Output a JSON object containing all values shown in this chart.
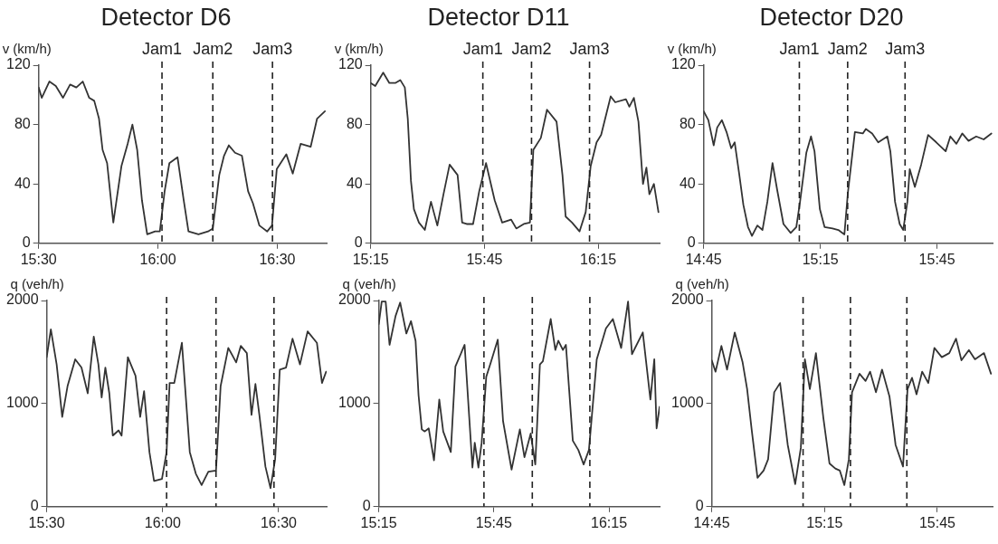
{
  "chart_data": [
    {
      "type": "line",
      "title": "Detector D6",
      "ylabel": "v (km/h)",
      "color": "#333333",
      "marker": "none",
      "line_style": "solid",
      "x": [
        15.5,
        15.513,
        15.545,
        15.572,
        15.602,
        15.632,
        15.658,
        15.685,
        15.712,
        15.733,
        15.753,
        15.768,
        15.787,
        15.813,
        15.847,
        15.873,
        15.893,
        15.913,
        15.933,
        15.955,
        15.988,
        16.008,
        16.028,
        16.048,
        16.082,
        16.108,
        16.128,
        16.17,
        16.21,
        16.23,
        16.257,
        16.277,
        16.297,
        16.323,
        16.352,
        16.378,
        16.398,
        16.425,
        16.458,
        16.478,
        16.498,
        16.538,
        16.565,
        16.598,
        16.64,
        16.667,
        16.7
      ],
      "values": [
        105,
        98,
        109,
        106,
        98,
        107,
        105,
        109,
        98,
        96,
        84,
        63,
        54,
        14,
        52,
        67,
        80,
        63,
        29,
        6,
        8,
        8,
        35,
        54,
        58,
        29,
        8,
        6,
        8,
        10,
        46,
        59,
        66,
        61,
        59,
        35,
        27,
        12,
        8,
        12,
        50,
        60,
        47,
        67,
        65,
        84,
        89
      ],
      "xlim": [
        15.5,
        16.707
      ],
      "xticks": [
        {
          "value": 15.5,
          "label": "15:30"
        },
        {
          "value": 16,
          "label": "16:00"
        },
        {
          "value": 16.5,
          "label": "16:30"
        }
      ],
      "ylim": [
        0,
        120
      ],
      "yticks": [
        0,
        40,
        80,
        120
      ],
      "ref_lines": [
        {
          "axis": "x",
          "value": 16.017,
          "label": "Jam1",
          "line_style": "dashed"
        },
        {
          "axis": "x",
          "value": 16.23,
          "label": "Jam2",
          "line_style": "dashed"
        },
        {
          "axis": "x",
          "value": 16.48,
          "label": "Jam3",
          "line_style": "dashed"
        }
      ]
    },
    {
      "type": "line",
      "title": "Detector D11",
      "ylabel": "v (km/h)",
      "color": "#333333",
      "marker": "none",
      "line_style": "solid",
      "x": [
        15.25,
        15.27,
        15.305,
        15.332,
        15.358,
        15.38,
        15.4,
        15.413,
        15.427,
        15.44,
        15.462,
        15.488,
        15.515,
        15.543,
        15.57,
        15.597,
        15.632,
        15.652,
        15.672,
        15.7,
        15.727,
        15.757,
        15.795,
        15.828,
        15.867,
        15.89,
        15.923,
        15.95,
        15.965,
        15.998,
        16.025,
        16.067,
        16.093,
        16.107,
        16.135,
        16.168,
        16.195,
        16.217,
        16.243,
        16.263,
        16.305,
        16.325,
        16.372,
        16.387,
        16.407,
        16.427,
        16.447,
        16.462,
        16.475,
        16.495,
        16.515
      ],
      "values": [
        108,
        106,
        115,
        108,
        108,
        110,
        105,
        84,
        42,
        23,
        14,
        9,
        28,
        12,
        33,
        53,
        46,
        14,
        13,
        13,
        35,
        54,
        29,
        14,
        16,
        10,
        13,
        14,
        63,
        71,
        90,
        82,
        46,
        18,
        14,
        8,
        21,
        52,
        68,
        73,
        99,
        95,
        97,
        92,
        98,
        82,
        40,
        51,
        33,
        40,
        21
      ],
      "xlim": [
        15.25,
        16.52
      ],
      "xticks": [
        {
          "value": 15.25,
          "label": "15:15"
        },
        {
          "value": 15.75,
          "label": "15:45"
        },
        {
          "value": 16.25,
          "label": "16:15"
        }
      ],
      "ylim": [
        0,
        120
      ],
      "yticks": [
        0,
        40,
        80,
        120
      ],
      "ref_lines": [
        {
          "axis": "x",
          "value": 15.743,
          "label": "Jam1",
          "line_style": "dashed"
        },
        {
          "axis": "x",
          "value": 15.957,
          "label": "Jam2",
          "line_style": "dashed"
        },
        {
          "axis": "x",
          "value": 16.212,
          "label": "Jam3",
          "line_style": "dashed"
        }
      ]
    },
    {
      "type": "line",
      "title": "Detector D20",
      "ylabel": "v (km/h)",
      "color": "#333333",
      "marker": "none",
      "line_style": "solid",
      "x": [
        14.75,
        14.77,
        14.793,
        14.808,
        14.828,
        14.848,
        14.868,
        14.883,
        14.902,
        14.92,
        14.94,
        14.957,
        14.98,
        15.002,
        15.023,
        15.045,
        15.065,
        15.092,
        15.123,
        15.147,
        15.163,
        15.19,
        15.21,
        15.225,
        15.248,
        15.268,
        15.302,
        15.327,
        15.353,
        15.368,
        15.398,
        15.432,
        15.445,
        15.472,
        15.498,
        15.537,
        15.55,
        15.57,
        15.59,
        15.605,
        15.623,
        15.633,
        15.655,
        15.682,
        15.712,
        15.747,
        15.787,
        15.807,
        15.833,
        15.858,
        15.885,
        15.918,
        15.95,
        15.983
      ],
      "values": [
        89,
        83,
        66,
        78,
        83,
        75,
        64,
        68,
        47,
        26,
        11,
        5,
        12,
        9,
        28,
        54,
        36,
        13,
        7,
        11,
        28,
        61,
        72,
        62,
        23,
        11,
        10,
        9,
        6,
        34,
        75,
        74,
        77,
        74,
        68,
        72,
        62,
        28,
        13,
        9,
        28,
        50,
        38,
        53,
        73,
        68,
        62,
        72,
        67,
        74,
        69,
        72,
        70,
        74
      ],
      "xlim": [
        14.75,
        15.988
      ],
      "xticks": [
        {
          "value": 14.75,
          "label": "14:45"
        },
        {
          "value": 15.25,
          "label": "15:15"
        },
        {
          "value": 15.75,
          "label": "15:45"
        }
      ],
      "ylim": [
        0,
        120
      ],
      "yticks": [
        0,
        40,
        80,
        120
      ],
      "ref_lines": [
        {
          "axis": "x",
          "value": 15.16,
          "label": "Jam1",
          "line_style": "dashed"
        },
        {
          "axis": "x",
          "value": 15.367,
          "label": "Jam2",
          "line_style": "dashed"
        },
        {
          "axis": "x",
          "value": 15.613,
          "label": "Jam3",
          "line_style": "dashed"
        }
      ]
    },
    {
      "type": "line",
      "ylabel": "q (veh/h)",
      "color": "#333333",
      "marker": "none",
      "line_style": "solid",
      "x": [
        15.5,
        15.518,
        15.543,
        15.567,
        15.59,
        15.623,
        15.65,
        15.677,
        15.703,
        15.723,
        15.737,
        15.753,
        15.77,
        15.785,
        15.81,
        15.823,
        15.85,
        15.883,
        15.903,
        15.92,
        15.943,
        15.963,
        15.997,
        16.017,
        16.03,
        16.05,
        16.083,
        16.117,
        16.143,
        16.168,
        16.197,
        16.23,
        16.25,
        16.283,
        16.317,
        16.337,
        16.363,
        16.383,
        16.4,
        16.417,
        16.443,
        16.465,
        16.485,
        16.505,
        16.532,
        16.56,
        16.592,
        16.625,
        16.665,
        16.687,
        16.705
      ],
      "values": [
        1450,
        1720,
        1380,
        870,
        1170,
        1430,
        1350,
        1100,
        1650,
        1380,
        1060,
        1350,
        1100,
        690,
        740,
        690,
        1450,
        1270,
        870,
        1120,
        530,
        250,
        270,
        530,
        1200,
        1200,
        1590,
        530,
        320,
        210,
        340,
        350,
        1170,
        1540,
        1400,
        1560,
        1490,
        890,
        1190,
        890,
        390,
        180,
        460,
        1330,
        1350,
        1630,
        1380,
        1700,
        1590,
        1200,
        1310
      ],
      "xlim": [
        15.5,
        16.707
      ],
      "xticks": [
        {
          "value": 15.5,
          "label": "15:30"
        },
        {
          "value": 16,
          "label": "16:00"
        },
        {
          "value": 16.5,
          "label": "16:30"
        }
      ],
      "ylim": [
        0,
        2000
      ],
      "yticks": [
        0,
        1000,
        2000
      ],
      "ref_lines": [
        {
          "axis": "x",
          "value": 16.017,
          "line_style": "dashed"
        },
        {
          "axis": "x",
          "value": 16.23,
          "line_style": "dashed"
        },
        {
          "axis": "x",
          "value": 16.48,
          "line_style": "dashed"
        }
      ]
    },
    {
      "type": "line",
      "ylabel": "q (veh/h)",
      "color": "#333333",
      "marker": "none",
      "line_style": "solid",
      "x": [
        15.25,
        15.263,
        15.28,
        15.297,
        15.323,
        15.343,
        15.37,
        15.39,
        15.41,
        15.423,
        15.437,
        15.45,
        15.467,
        15.49,
        15.513,
        15.53,
        15.563,
        15.583,
        15.623,
        15.643,
        15.657,
        15.667,
        15.683,
        15.697,
        15.717,
        15.737,
        15.767,
        15.79,
        15.827,
        15.863,
        15.883,
        15.91,
        15.93,
        15.95,
        15.963,
        15.997,
        16.017,
        16.03,
        16.05,
        16.063,
        16.093,
        16.117,
        16.14,
        16.163,
        16.197,
        16.237,
        16.267,
        16.303,
        16.333,
        16.35,
        16.397,
        16.43,
        16.447,
        16.457,
        16.47
      ],
      "values": [
        1770,
        1990,
        1990,
        1570,
        1850,
        1980,
        1680,
        1800,
        1610,
        1080,
        750,
        730,
        760,
        450,
        1040,
        730,
        530,
        1360,
        1570,
        870,
        380,
        620,
        380,
        620,
        1260,
        1400,
        1620,
        830,
        360,
        750,
        480,
        710,
        410,
        1380,
        1410,
        1820,
        1520,
        1610,
        1520,
        1570,
        640,
        550,
        410,
        550,
        1430,
        1730,
        1820,
        1540,
        1990,
        1480,
        1690,
        1040,
        1430,
        760,
        970
      ],
      "xlim": [
        15.25,
        16.47
      ],
      "xticks": [
        {
          "value": 15.25,
          "label": "15:15"
        },
        {
          "value": 15.75,
          "label": "15:45"
        },
        {
          "value": 16.25,
          "label": "16:15"
        }
      ],
      "ylim": [
        0,
        2000
      ],
      "yticks": [
        0,
        1000,
        2000
      ],
      "ref_lines": [
        {
          "axis": "x",
          "value": 15.707,
          "line_style": "dashed"
        },
        {
          "axis": "x",
          "value": 15.917,
          "line_style": "dashed"
        },
        {
          "axis": "x",
          "value": 16.167,
          "line_style": "dashed"
        }
      ]
    },
    {
      "type": "line",
      "ylabel": "q (veh/h)",
      "color": "#333333",
      "marker": "none",
      "line_style": "solid",
      "x": [
        14.75,
        14.767,
        14.793,
        14.818,
        14.852,
        14.887,
        14.907,
        14.927,
        14.953,
        14.98,
        15.0,
        15.027,
        15.053,
        15.087,
        15.12,
        15.145,
        15.163,
        15.185,
        15.212,
        15.245,
        15.272,
        15.298,
        15.318,
        15.338,
        15.358,
        15.372,
        15.405,
        15.432,
        15.452,
        15.478,
        15.505,
        15.538,
        15.565,
        15.598,
        15.618,
        15.638,
        15.658,
        15.683,
        15.71,
        15.737,
        15.77,
        15.803,
        15.833,
        15.857,
        15.89,
        15.917,
        15.957,
        15.988
      ],
      "values": [
        1420,
        1310,
        1560,
        1330,
        1690,
        1400,
        1140,
        750,
        280,
        350,
        460,
        1110,
        1200,
        600,
        220,
        570,
        1430,
        1140,
        1490,
        860,
        420,
        370,
        350,
        210,
        460,
        1110,
        1290,
        1220,
        1310,
        1110,
        1330,
        1070,
        600,
        390,
        1140,
        1250,
        1090,
        1310,
        1200,
        1540,
        1450,
        1490,
        1630,
        1420,
        1520,
        1430,
        1490,
        1290
      ],
      "xlim": [
        14.75,
        15.995
      ],
      "xticks": [
        {
          "value": 14.75,
          "label": "14:45"
        },
        {
          "value": 15.25,
          "label": "15:15"
        },
        {
          "value": 15.75,
          "label": "15:45"
        }
      ],
      "ylim": [
        0,
        2000
      ],
      "yticks": [
        0,
        1000,
        2000
      ],
      "ref_lines": [
        {
          "axis": "x",
          "value": 15.155,
          "line_style": "dashed"
        },
        {
          "axis": "x",
          "value": 15.365,
          "line_style": "dashed"
        },
        {
          "axis": "x",
          "value": 15.615,
          "line_style": "dashed"
        }
      ]
    }
  ]
}
